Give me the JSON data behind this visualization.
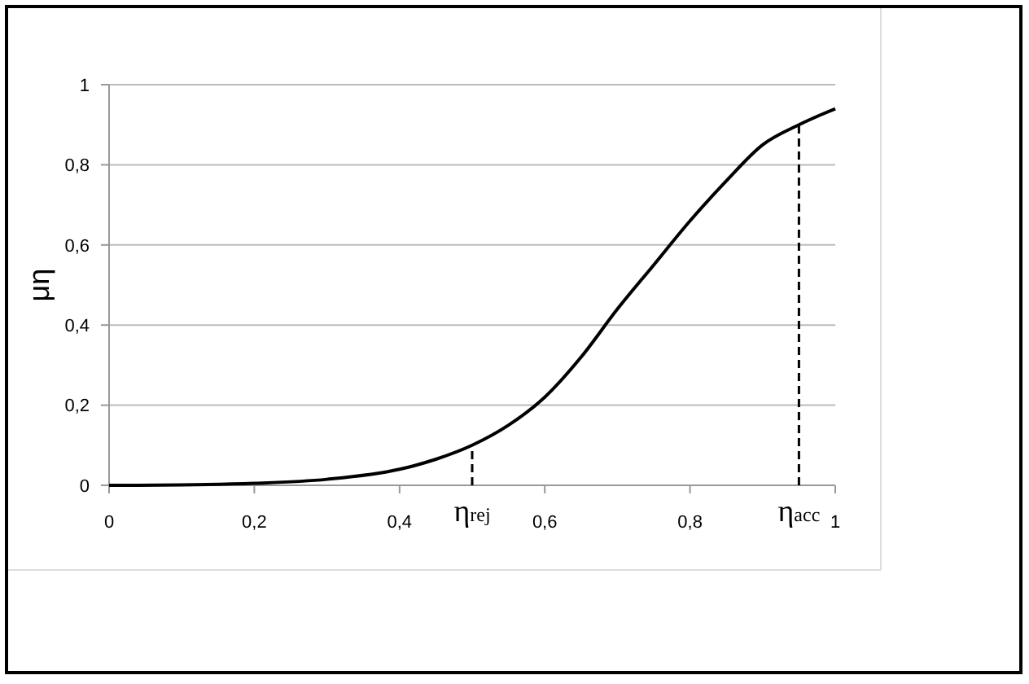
{
  "chart_data": {
    "type": "line",
    "ylabel": "μη",
    "x": [
      0,
      0.1,
      0.2,
      0.3,
      0.4,
      0.45,
      0.5,
      0.55,
      0.6,
      0.65,
      0.7,
      0.75,
      0.8,
      0.85,
      0.9,
      0.95,
      1
    ],
    "series": [
      {
        "color": "#000000",
        "values": [
          0,
          0.001,
          0.005,
          0.015,
          0.04,
          0.065,
          0.1,
          0.15,
          0.22,
          0.32,
          0.44,
          0.55,
          0.66,
          0.76,
          0.85,
          0.9,
          0.94
        ]
      }
    ],
    "xlim": [
      0,
      1
    ],
    "ylim": [
      0,
      1
    ],
    "xticks": [
      0,
      {
        "value": 0.2,
        "label": "0,2"
      },
      {
        "value": 0.4,
        "label": "0,4"
      },
      {
        "value": 0.6,
        "label": "0,6"
      },
      {
        "value": 0.8,
        "label": "0,8"
      },
      1
    ],
    "yticks": [
      0,
      {
        "value": 0.2,
        "label": "0,2"
      },
      {
        "value": 0.4,
        "label": "0,4"
      },
      {
        "value": 0.6,
        "label": "0,6"
      },
      {
        "value": 0.8,
        "label": "0,8"
      },
      1
    ],
    "grid": "y",
    "marker": "none",
    "line_style": "solid",
    "annotations": [
      {
        "text": "η$_{rej}$",
        "x": 0.5,
        "y": 0.1
      },
      {
        "text": "η$_{acc}$",
        "x": 0.95,
        "y": 0.9
      }
    ]
  }
}
